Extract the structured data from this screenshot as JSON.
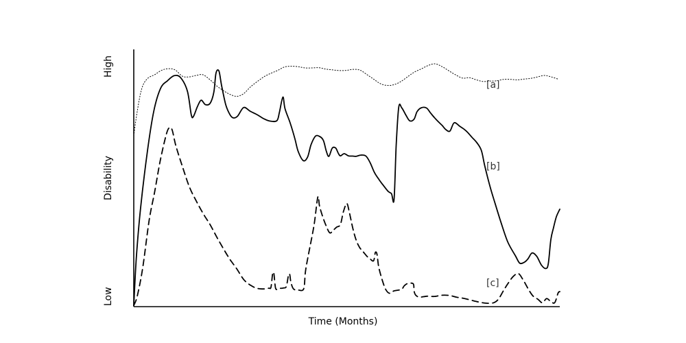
{
  "chart_data": {
    "type": "line",
    "xlabel": "Time (Months)",
    "ylabel": "Disability",
    "y_tick_labels": [
      "Low",
      "High"
    ],
    "xlim": [
      0,
      100
    ],
    "ylim": [
      0,
      100
    ],
    "grid": false,
    "legend": "none",
    "series": [
      {
        "name": "[a]",
        "label": "[a]",
        "style": "dotted",
        "stroke_width": 1.0,
        "points": [
          [
            0.0,
            70.4
          ],
          [
            0.8,
            80.3
          ],
          [
            1.9,
            89.9
          ],
          [
            3.2,
            93.9
          ],
          [
            4.9,
            95.5
          ],
          [
            6.5,
            97.3
          ],
          [
            8.1,
            98.0
          ],
          [
            9.7,
            97.5
          ],
          [
            11.4,
            94.9
          ],
          [
            13.0,
            94.6
          ],
          [
            14.6,
            95.2
          ],
          [
            16.2,
            95.5
          ],
          [
            17.8,
            93.6
          ],
          [
            19.4,
            91.0
          ],
          [
            21.0,
            89.0
          ],
          [
            22.6,
            87.4
          ],
          [
            24.2,
            86.6
          ],
          [
            25.8,
            87.7
          ],
          [
            27.4,
            90.5
          ],
          [
            29.0,
            92.7
          ],
          [
            30.6,
            94.7
          ],
          [
            32.2,
            96.1
          ],
          [
            33.8,
            97.3
          ],
          [
            35.4,
            98.7
          ],
          [
            37.0,
            99.0
          ],
          [
            38.6,
            98.8
          ],
          [
            40.2,
            98.3
          ],
          [
            41.8,
            98.3
          ],
          [
            43.5,
            98.4
          ],
          [
            45.1,
            97.8
          ],
          [
            46.7,
            97.5
          ],
          [
            48.3,
            97.2
          ],
          [
            49.9,
            97.3
          ],
          [
            51.5,
            97.7
          ],
          [
            53.1,
            97.4
          ],
          [
            54.7,
            95.6
          ],
          [
            56.3,
            93.7
          ],
          [
            57.9,
            91.8
          ],
          [
            59.5,
            91.1
          ],
          [
            61.1,
            91.4
          ],
          [
            62.7,
            92.7
          ],
          [
            64.3,
            94.7
          ],
          [
            65.9,
            96.6
          ],
          [
            67.5,
            97.9
          ],
          [
            69.1,
            99.3
          ],
          [
            70.7,
            100.0
          ],
          [
            72.3,
            98.9
          ],
          [
            73.9,
            97.2
          ],
          [
            75.5,
            95.5
          ],
          [
            77.2,
            94.1
          ],
          [
            78.8,
            94.3
          ],
          [
            80.4,
            93.4
          ],
          [
            82.0,
            92.7
          ],
          [
            83.6,
            92.9
          ],
          [
            85.2,
            93.0
          ],
          [
            86.8,
            93.6
          ],
          [
            88.4,
            93.6
          ],
          [
            90.0,
            93.4
          ],
          [
            91.6,
            93.7
          ],
          [
            93.2,
            94.0
          ],
          [
            94.8,
            94.6
          ],
          [
            96.4,
            95.2
          ],
          [
            98.0,
            94.6
          ],
          [
            99.6,
            93.7
          ]
        ]
      },
      {
        "name": "[b]",
        "label": "[b]",
        "style": "solid",
        "stroke_width": 1.8,
        "points": [
          [
            0.0,
            0.5
          ],
          [
            0.6,
            20.1
          ],
          [
            1.6,
            40.5
          ],
          [
            3.2,
            64.0
          ],
          [
            4.7,
            80.5
          ],
          [
            6.3,
            89.9
          ],
          [
            7.9,
            93.0
          ],
          [
            9.5,
            95.1
          ],
          [
            11.0,
            94.3
          ],
          [
            12.6,
            88.7
          ],
          [
            13.5,
            79.0
          ],
          [
            14.0,
            78.3
          ],
          [
            14.9,
            82.2
          ],
          [
            15.8,
            85.0
          ],
          [
            16.8,
            83.2
          ],
          [
            17.9,
            83.7
          ],
          [
            18.8,
            88.3
          ],
          [
            19.3,
            96.2
          ],
          [
            20.0,
            97.0
          ],
          [
            20.6,
            91.2
          ],
          [
            21.6,
            83.1
          ],
          [
            22.6,
            79.0
          ],
          [
            23.4,
            77.7
          ],
          [
            24.4,
            78.5
          ],
          [
            25.8,
            82.0
          ],
          [
            27.3,
            80.5
          ],
          [
            28.9,
            79.1
          ],
          [
            30.5,
            77.4
          ],
          [
            32.0,
            76.4
          ],
          [
            33.6,
            76.6
          ],
          [
            34.2,
            80.1
          ],
          [
            35.0,
            86.3
          ],
          [
            35.5,
            81.5
          ],
          [
            36.7,
            75.7
          ],
          [
            37.8,
            69.3
          ],
          [
            38.6,
            63.9
          ],
          [
            39.8,
            60.1
          ],
          [
            40.8,
            61.6
          ],
          [
            41.6,
            66.6
          ],
          [
            42.6,
            70.1
          ],
          [
            43.5,
            70.2
          ],
          [
            44.5,
            68.5
          ],
          [
            45.2,
            64.0
          ],
          [
            45.8,
            61.9
          ],
          [
            46.6,
            65.3
          ],
          [
            47.4,
            65.3
          ],
          [
            48.0,
            63.2
          ],
          [
            48.5,
            62.1
          ],
          [
            49.4,
            63.0
          ],
          [
            50.4,
            62.1
          ],
          [
            51.4,
            62.0
          ],
          [
            52.2,
            61.9
          ],
          [
            53.3,
            62.4
          ],
          [
            54.5,
            62.0
          ],
          [
            55.5,
            59.2
          ],
          [
            56.5,
            55.2
          ],
          [
            57.5,
            52.5
          ],
          [
            58.5,
            50.1
          ],
          [
            59.7,
            47.5
          ],
          [
            60.5,
            46.5
          ],
          [
            61.1,
            44.1
          ],
          [
            61.6,
            66.3
          ],
          [
            62.2,
            82.2
          ],
          [
            62.9,
            81.9
          ],
          [
            63.9,
            78.8
          ],
          [
            64.8,
            76.5
          ],
          [
            65.8,
            77.2
          ],
          [
            66.5,
            80.3
          ],
          [
            67.5,
            81.9
          ],
          [
            68.7,
            81.8
          ],
          [
            69.6,
            79.9
          ],
          [
            70.5,
            78.0
          ],
          [
            71.4,
            76.3
          ],
          [
            72.4,
            74.6
          ],
          [
            73.2,
            73.0
          ],
          [
            74.2,
            72.3
          ],
          [
            75.2,
            75.7
          ],
          [
            76.5,
            74.3
          ],
          [
            77.5,
            73.1
          ],
          [
            78.3,
            71.9
          ],
          [
            79.4,
            69.7
          ],
          [
            80.5,
            67.6
          ],
          [
            81.6,
            64.3
          ],
          [
            82.4,
            57.9
          ],
          [
            83.6,
            49.6
          ],
          [
            84.8,
            42.6
          ],
          [
            86.2,
            34.7
          ],
          [
            87.8,
            26.6
          ],
          [
            89.6,
            20.9
          ],
          [
            90.6,
            17.9
          ],
          [
            91.7,
            18.3
          ],
          [
            92.5,
            19.6
          ],
          [
            93.5,
            22.1
          ],
          [
            94.6,
            20.7
          ],
          [
            95.7,
            17.1
          ],
          [
            96.7,
            15.7
          ],
          [
            97.3,
            17.6
          ],
          [
            97.9,
            27.6
          ],
          [
            98.5,
            32.3
          ],
          [
            99.2,
            37.0
          ],
          [
            100.0,
            40.1
          ]
        ]
      },
      {
        "name": "[c]",
        "label": "[c]",
        "style": "dashed",
        "stroke_width": 1.8,
        "points": [
          [
            0.0,
            0.5
          ],
          [
            0.8,
            4.2
          ],
          [
            2.1,
            15.9
          ],
          [
            3.6,
            35.5
          ],
          [
            4.9,
            47.2
          ],
          [
            6.2,
            60.0
          ],
          [
            7.6,
            70.7
          ],
          [
            8.3,
            73.6
          ],
          [
            9.0,
            72.8
          ],
          [
            9.9,
            66.1
          ],
          [
            11.5,
            57.3
          ],
          [
            13.1,
            49.1
          ],
          [
            14.7,
            43.4
          ],
          [
            16.3,
            38.3
          ],
          [
            17.9,
            33.8
          ],
          [
            19.5,
            28.6
          ],
          [
            21.1,
            23.7
          ],
          [
            22.6,
            19.4
          ],
          [
            24.2,
            15.5
          ],
          [
            25.8,
            11.2
          ],
          [
            27.4,
            8.8
          ],
          [
            29.0,
            7.5
          ],
          [
            30.5,
            7.3
          ],
          [
            31.7,
            7.6
          ],
          [
            32.2,
            8.0
          ],
          [
            32.6,
            13.5
          ],
          [
            32.9,
            13.5
          ],
          [
            33.3,
            7.5
          ],
          [
            34.0,
            7.5
          ],
          [
            35.2,
            7.7
          ],
          [
            35.8,
            8.3
          ],
          [
            36.3,
            12.7
          ],
          [
            36.6,
            13.3
          ],
          [
            36.9,
            10.0
          ],
          [
            37.5,
            7.3
          ],
          [
            38.7,
            6.8
          ],
          [
            39.9,
            7.4
          ],
          [
            40.3,
            14.5
          ],
          [
            41.0,
            21.4
          ],
          [
            42.3,
            33.4
          ],
          [
            43.2,
            45.1
          ],
          [
            43.6,
            41.4
          ],
          [
            44.3,
            37.3
          ],
          [
            45.1,
            33.5
          ],
          [
            46.0,
            30.4
          ],
          [
            46.8,
            31.4
          ],
          [
            47.6,
            32.7
          ],
          [
            48.5,
            33.8
          ],
          [
            49.2,
            39.0
          ],
          [
            50.0,
            42.5
          ],
          [
            50.6,
            38.9
          ],
          [
            51.4,
            32.4
          ],
          [
            52.2,
            27.4
          ],
          [
            53.0,
            24.4
          ],
          [
            53.9,
            22.5
          ],
          [
            54.7,
            20.8
          ],
          [
            55.5,
            19.6
          ],
          [
            56.3,
            18.9
          ],
          [
            56.7,
            22.3
          ],
          [
            57.1,
            21.5
          ],
          [
            57.5,
            16.3
          ],
          [
            58.3,
            11.1
          ],
          [
            59.1,
            7.2
          ],
          [
            60.0,
            5.5
          ],
          [
            61.1,
            6.5
          ],
          [
            62.8,
            7.1
          ],
          [
            63.5,
            8.6
          ],
          [
            64.3,
            9.5
          ],
          [
            65.6,
            9.4
          ],
          [
            65.8,
            6.4
          ],
          [
            66.2,
            4.7
          ],
          [
            67.1,
            3.9
          ],
          [
            68.8,
            4.3
          ],
          [
            70.6,
            4.2
          ],
          [
            72.3,
            4.7
          ],
          [
            74.1,
            4.6
          ],
          [
            75.8,
            3.9
          ],
          [
            77.5,
            3.4
          ],
          [
            79.3,
            2.6
          ],
          [
            81.0,
            1.9
          ],
          [
            82.8,
            1.4
          ],
          [
            84.5,
            1.6
          ],
          [
            85.6,
            3.1
          ],
          [
            86.8,
            6.6
          ],
          [
            87.9,
            9.7
          ],
          [
            89.1,
            12.5
          ],
          [
            90.3,
            13.6
          ],
          [
            91.4,
            11.0
          ],
          [
            92.6,
            7.3
          ],
          [
            93.7,
            4.4
          ],
          [
            94.9,
            3.0
          ],
          [
            95.9,
            1.6
          ],
          [
            96.9,
            3.3
          ],
          [
            97.8,
            2.3
          ],
          [
            98.8,
            1.6
          ],
          [
            99.6,
            5.6
          ],
          [
            100.0,
            6.2
          ]
        ]
      }
    ]
  }
}
